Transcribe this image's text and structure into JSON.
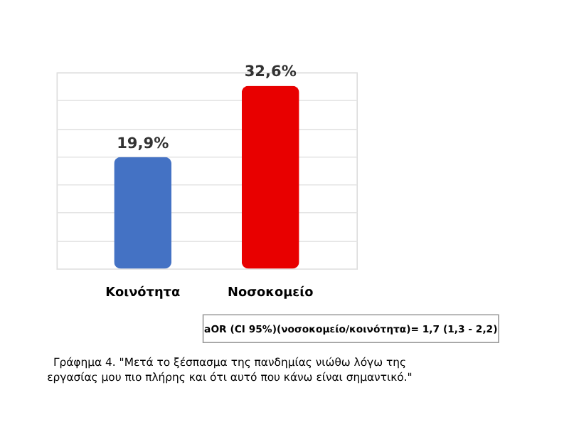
{
  "chart_data": {
    "type": "bar",
    "categories": [
      "Κοινότητα",
      "Νοσοκομείο"
    ],
    "values": [
      19.9,
      32.6
    ],
    "colors": [
      "#4472c4",
      "#e80000"
    ],
    "data_labels": true,
    "value_labels": [
      "19,9%",
      "32,6%"
    ],
    "grid": "y",
    "tick_labels": "x",
    "annotations": [
      "aOR (CI 95%)(νοσοκομείο/κοινότητα)= 1,7  (1,3 - 2,2)",
      "Γράφημα 4. \"Μετά το ξέσπασμα της πανδημίας νιώθω λόγω της\nεργασίας μου πιο πλήρης και ότι αυτό που κάνω είναι σημαντικό.\""
    ]
  }
}
